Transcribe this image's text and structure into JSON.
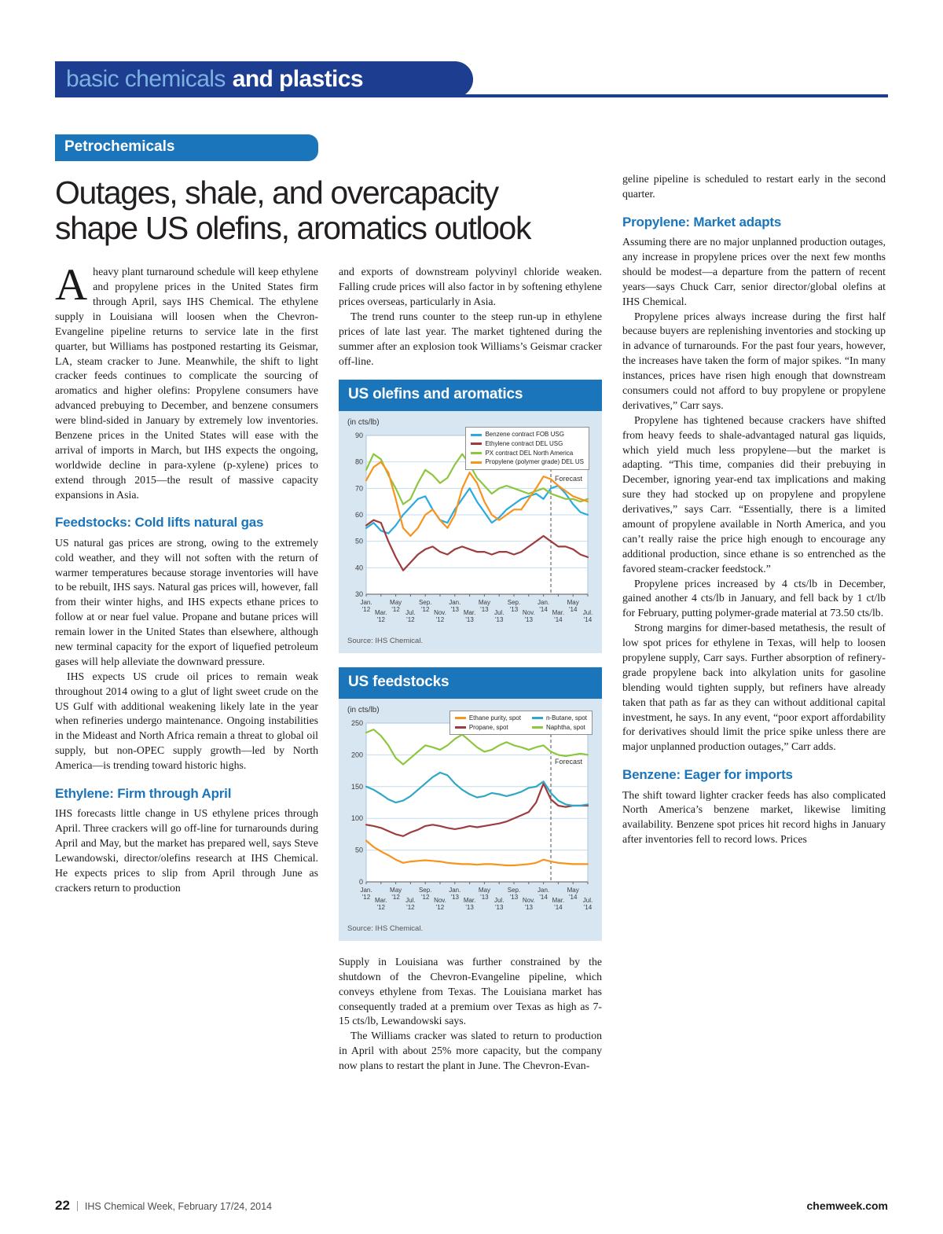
{
  "masthead": {
    "light": "basic chemicals",
    "bold": "and plastics"
  },
  "article": {
    "kicker": "Petrochemicals",
    "headline_line1": "Outages, shale, and overcapacity",
    "headline_line2": "shape US olefins, aromatics outlook",
    "col1": {
      "dropcap": "A",
      "lead": "heavy plant turnaround schedule will keep ethylene and propylene prices in the United States firm through April, says IHS Chemical. The ethylene supply in Louisiana will loosen when the Chevron-Evangeline pipeline returns to service late in the first quarter, but Williams has postponed restarting its Geismar, LA, steam cracker to June. Meanwhile, the shift to light cracker feeds continues to complicate the sourcing of aromatics and higher olefins: Propylene consumers have advanced prebuying to December, and benzene consumers were blind-sided in January by extremely low inventories. Benzene prices in the United States will ease with the arrival of imports in March, but IHS expects the ongoing, worldwide decline in para-xylene (p-xylene) prices to extend through 2015—the result of massive capacity expansions in Asia.",
      "h1": "Feedstocks: Cold lifts natural gas",
      "p1": "US natural gas prices are strong, owing to the extremely cold weather, and they will not soften with the return of warmer temperatures because storage inventories will have to be rebuilt, IHS says. Natural gas prices will, however, fall from their winter highs, and IHS expects ethane prices to follow at or near fuel value. Propane and butane prices will remain lower in the United States than elsewhere, although new terminal capacity for the export of liquefied petroleum gases will help alleviate the downward pressure.",
      "p2": "IHS expects US crude oil prices to remain weak throughout 2014 owing to a glut of light sweet crude on the US Gulf with additional weakening likely late in the year when refineries undergo maintenance. Ongoing instabilities in the Mideast and North Africa remain a threat to global oil supply, but non-OPEC supply growth—led by North America—is trending toward historic highs.",
      "h2": "Ethylene: Firm through April",
      "p3": "IHS forecasts little change in US ethylene prices through April. Three crackers will go off-line for turnarounds during April and May, but the market has prepared well, says Steve Lewandowski, director/olefins research at IHS Chemical. He expects prices to slip from April through June as crackers return to production"
    },
    "col2": {
      "p1": "and exports of downstream polyvinyl chloride weaken. Falling crude prices will also factor in by softening ethylene prices overseas, particularly in Asia.",
      "p2": "The trend runs counter to the steep run-up in ethylene prices of late last year. The market tightened during the summer after an explosion took Williams’s Geismar cracker off-line.",
      "p3": "Supply in Louisiana was further constrained by the shutdown of the Chevron-Evangeline pipeline, which conveys ethylene from Texas. The Louisiana market has consequently traded at a premium over Texas as high as 7-15 cts/lb, Lewandowski says.",
      "p4": "The Williams cracker was slated to return to production in April with about 25% more capacity, but the company now plans to restart the plant in June. The Chevron-Evan-"
    },
    "col3": {
      "p0": "geline pipeline is scheduled to restart early in the second quarter.",
      "h1": "Propylene: Market adapts",
      "p1": "Assuming there are no major unplanned production outages, any increase in propylene prices over the next few months should be modest—a departure from the pattern of recent years—says Chuck Carr, senior director/global olefins at IHS Chemical.",
      "p2": "Propylene prices always increase during the first half because buyers are replenishing inventories and stocking up in advance of turnarounds. For the past four years, however, the increases have taken the form of major spikes. “In many instances, prices have risen high enough that downstream consumers could not afford to buy propylene or propylene derivatives,” Carr says.",
      "p3": "Propylene has tightened because crackers have shifted from heavy feeds to shale-advantaged natural gas liquids, which yield much less propylene—but the market is adapting. “This time, companies did their prebuying in December, ignoring year-end tax implications and making sure they had stocked up on propylene and propylene derivatives,” says Carr. “Essentially, there is a limited amount of propylene available in North America, and you can’t really raise the price high enough to encourage any additional production, since ethane is so entrenched as the favored steam-cracker feedstock.”",
      "p4": "Propylene prices increased by 4 cts/lb in December, gained another 4 cts/lb in January, and fell back by 1 ct/lb for February, putting polymer-grade material at 73.50 cts/lb.",
      "p5": "Strong margins for dimer-based metathesis, the result of low spot prices for ethylene in Texas, will help to loosen propylene supply, Carr says. Further absorption of refinery-grade propylene back into alkylation units for gasoline blending would tighten supply, but refiners have already taken that path as far as they can without additional capital investment, he says. In any event, “poor export affordability for derivatives should limit the price spike unless there are major unplanned production outages,” Carr adds.",
      "h2": "Benzene: Eager for imports",
      "p6": "The shift toward lighter cracker feeds has also complicated North America’s benzene market, likewise limiting availability. Benzene spot prices hit record highs in January after inventories fell to record lows. Prices"
    }
  },
  "chart_data": [
    {
      "type": "line",
      "title": "US olefins and aromatics",
      "unit_label": "(in cts/lb)",
      "source": "Source: IHS Chemical.",
      "ylim": [
        30,
        90
      ],
      "yticks": [
        30,
        40,
        50,
        60,
        70,
        80,
        90
      ],
      "x_start": "Jan 2012",
      "x_end": "Jul 2014",
      "x_interval": "monthly",
      "xticks": [
        "Jan. '12",
        "Mar. '12",
        "May '12",
        "Jul. '12",
        "Sep. '12",
        "Nov. '12",
        "Jan. '13",
        "Mar. '13",
        "May '13",
        "Jul. '13",
        "Sep. '13",
        "Nov. '13",
        "Jan. '14",
        "Mar. '14",
        "May '14",
        "Jul. '14"
      ],
      "forecast_label": "Forecast",
      "forecast_index": 25,
      "forecast_label_dy": 58,
      "legend_layout": "column",
      "grid": true,
      "series": [
        {
          "name": "Benzene contract FOB USG",
          "color": "#29abe2",
          "values": [
            55,
            57,
            54,
            53,
            56,
            60,
            63,
            66,
            67,
            62,
            58,
            57,
            62,
            66,
            70,
            65,
            61,
            57,
            59,
            62,
            64,
            66,
            67,
            68,
            66,
            70,
            71,
            68,
            64,
            61,
            60
          ]
        },
        {
          "name": "Ethylene contract DEL USG",
          "color": "#9e3b3e",
          "values": [
            56,
            58,
            57,
            50,
            44,
            39,
            42,
            45,
            47,
            48,
            46,
            45,
            47,
            48,
            47,
            46,
            46,
            45,
            46,
            46,
            45,
            46,
            48,
            50,
            52,
            50,
            48,
            48,
            47,
            45,
            44
          ]
        },
        {
          "name": "PX contract DEL North America",
          "color": "#8dc63f",
          "values": [
            77,
            83,
            81,
            75,
            70,
            64,
            66,
            72,
            77,
            75,
            72,
            74,
            79,
            83,
            79,
            74,
            71,
            68,
            70,
            71,
            70,
            69,
            68,
            69,
            70,
            68,
            67,
            66,
            66,
            65,
            66
          ]
        },
        {
          "name": "Propylene (polymer grade) DEL US",
          "color": "#f7941e",
          "values": [
            73,
            78,
            80,
            76,
            66,
            55,
            52,
            55,
            60,
            62,
            58,
            55,
            60,
            70,
            76,
            72,
            65,
            60,
            58,
            60,
            62,
            62,
            66,
            70,
            74.5,
            73.5,
            71,
            69,
            67,
            66,
            65
          ]
        }
      ]
    },
    {
      "type": "line",
      "title": "US feedstocks",
      "unit_label": "(in cts/lb)",
      "source": "Source: IHS Chemical.",
      "ylim": [
        0,
        250
      ],
      "yticks": [
        0,
        50,
        100,
        150,
        200,
        250
      ],
      "x_start": "Jan 2012",
      "x_end": "Jul 2014",
      "x_interval": "monthly",
      "xticks": [
        "Jan. '12",
        "Mar. '12",
        "May '12",
        "Jul. '12",
        "Sep. '12",
        "Nov. '12",
        "Jan. '13",
        "Mar. '13",
        "May '13",
        "Jul. '13",
        "Sep. '13",
        "Nov. '13",
        "Jan. '14",
        "Mar. '14",
        "May '14",
        "Jul. '14"
      ],
      "forecast_label": "Forecast",
      "forecast_index": 25,
      "forecast_label_dy": 52,
      "legend_layout": "grid",
      "grid": true,
      "series": [
        {
          "name": "Ethane purity, spot",
          "color": "#f7941e",
          "values": [
            65,
            55,
            48,
            42,
            35,
            30,
            32,
            33,
            34,
            33,
            32,
            30,
            29,
            28,
            28,
            27,
            28,
            28,
            27,
            26,
            26,
            27,
            28,
            30,
            35,
            32,
            30,
            29,
            28,
            28,
            28
          ]
        },
        {
          "name": "Propane, spot",
          "color": "#9e3b3e",
          "values": [
            90,
            88,
            85,
            80,
            75,
            72,
            78,
            82,
            88,
            90,
            88,
            85,
            83,
            85,
            88,
            86,
            88,
            90,
            92,
            95,
            100,
            105,
            110,
            125,
            155,
            130,
            120,
            118,
            120,
            120,
            120
          ]
        },
        {
          "name": "n-Butane, spot",
          "color": "#2fa8c5",
          "values": [
            150,
            145,
            138,
            130,
            125,
            128,
            135,
            145,
            155,
            165,
            172,
            168,
            155,
            145,
            138,
            133,
            135,
            140,
            138,
            135,
            138,
            142,
            148,
            150,
            158,
            140,
            128,
            122,
            120,
            120,
            122
          ]
        },
        {
          "name": "Naphtha, spot",
          "color": "#8dc63f",
          "values": [
            235,
            240,
            230,
            215,
            195,
            185,
            195,
            205,
            215,
            212,
            208,
            215,
            225,
            232,
            222,
            212,
            205,
            208,
            215,
            220,
            215,
            212,
            208,
            212,
            215,
            205,
            200,
            198,
            200,
            202,
            200
          ]
        }
      ]
    }
  ],
  "footer": {
    "page_number": "22",
    "issue": "IHS Chemical Week, February 17/24, 2014",
    "site": "chemweek.com"
  }
}
